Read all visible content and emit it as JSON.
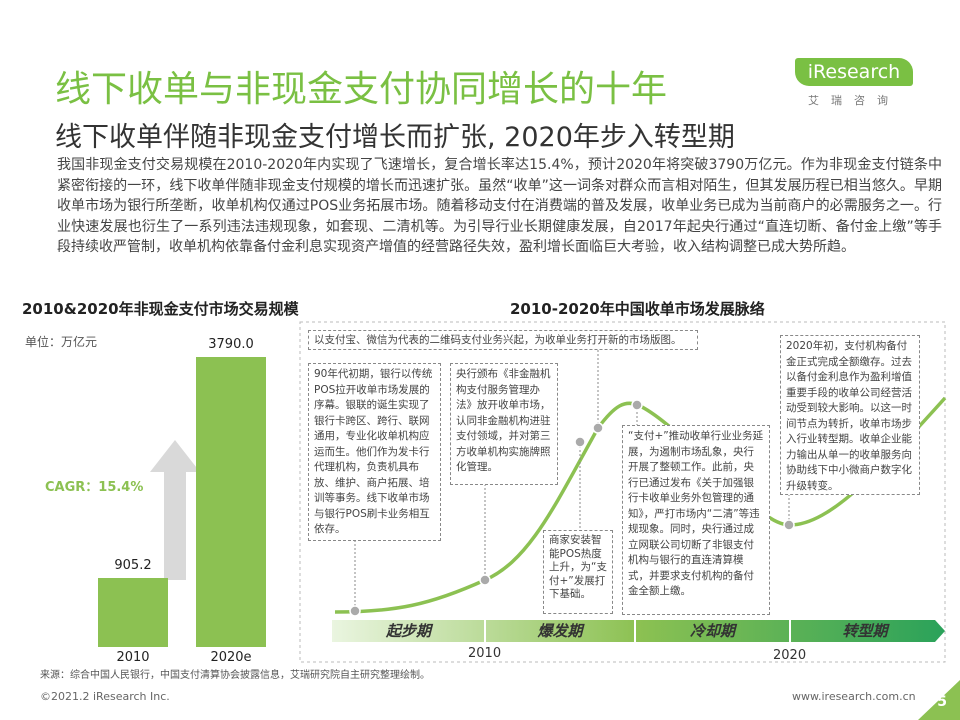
{
  "header": {
    "title": "线下收单与非现金支付协同增长的十年",
    "subtitle": "线下收单伴随非现金支付增长而扩张, 2020年步入转型期",
    "logo_text": "iResearch",
    "logo_sub": "艾瑞咨询"
  },
  "intro": "我国非现金支付交易规模在2010-2020年内实现了飞速增长，复合增长率达15.4%，预计2020年将突破3790万亿元。作为非现金支付链条中紧密衔接的一环，线下收单伴随非现金支付规模的增长而迅速扩张。虽然“收单”这一词条对群众而言相对陌生，但其发展历程已相当悠久。早期收单市场为银行所垄断，收单机构仅通过POS业务拓展市场。随着移动支付在消费端的普及发展，收单业务已成为当前商户的必需服务之一。行业快速发展也衍生了一系列违法违规现象，如套现、二清机等。为引导行业长期健康发展，自2017年起央行通过“直连切断、备付金上缴”等手段持续收严管制，收单机构依靠备付金利息实现资产增值的经营路径失效，盈利增长面临巨大考验，收入结构调整已成大势所趋。",
  "left_section": {
    "title": "2010&2020年非现金支付市场交易规模",
    "unit": "单位：万亿元",
    "cagr": "CAGR：15.4%"
  },
  "chart_data": [
    {
      "type": "bar",
      "title": "2010&2020年非现金支付市场交易规模",
      "unit": "单位：万亿元",
      "categories": [
        "2010",
        "2020e"
      ],
      "values": [
        905.2,
        3790.0
      ],
      "value_labels": [
        "905.2",
        "3790.0"
      ],
      "ylim": [
        0,
        3790.0
      ],
      "annotation": "CAGR：15.4%",
      "color": "#8cc152"
    }
  ],
  "right_section": {
    "title": "2010-2020年中国收单市场发展脉络",
    "phases": [
      "起步期",
      "爆发期",
      "冷却期",
      "转型期"
    ],
    "years": [
      "2010",
      "2020"
    ],
    "notes": {
      "top": "以支付宝、微信为代表的二维码支付业务兴起，为收单业务打开新的市场版图。",
      "pos_early": "90年代初期，银行以传统POS拉开收单市场发展的序幕。银联的诞生实现了银行卡跨区、跨行、联网通用，专业化收单机构应运而生。他们作为发卡行代理机构，负责机具布放、维护、商户拓展、培训等事务。线下收单市场与银行POS刷卡业务相互依存。",
      "regulation": "央行颁布《非金融机构支付服务管理办法》放开收单市场，认同非金融机构进驻支付领域，并对第三方收单机构实施牌照化管理。",
      "smart_pos": "商家安装智能POS热度上升，为“支付+”发展打下基础。",
      "pay_plus": "“支付+”推动收单行业业务延展，为遏制市场乱象，央行开展了整顿工作。此前，央行已通过发布《关于加强银行卡收单业务外包管理的通知》，严打市场内“二清”等违规现象。同时，央行通过成立网联公司切断了非银支付机构与银行的直连清算模式，并要求支付机构的备付金全额上缴。",
      "transition": "2020年初，支付机构备付金正式完成全额缴存。过去以备付金利息作为盈利增值重要手段的收单公司经营活动受到较大影响。以这一时间节点为转折，收单市场步入行业转型期。收单企业能力输出从单一的收单服务向协助线下中小微商户数字化升级转变。"
    }
  },
  "footer": {
    "source": "来源：综合中国人民银行，中国支付清算协会披露信息，艾瑞研究院自主研究整理绘制。",
    "copyright": "©2021.2 iResearch Inc.",
    "website": "www.iresearch.com.cn",
    "page": "5"
  },
  "colors": {
    "accent": "#7ac043",
    "bar": "#8cc152",
    "timeline_dark": "#2aa25a",
    "arrow": "#d9d9d9"
  }
}
